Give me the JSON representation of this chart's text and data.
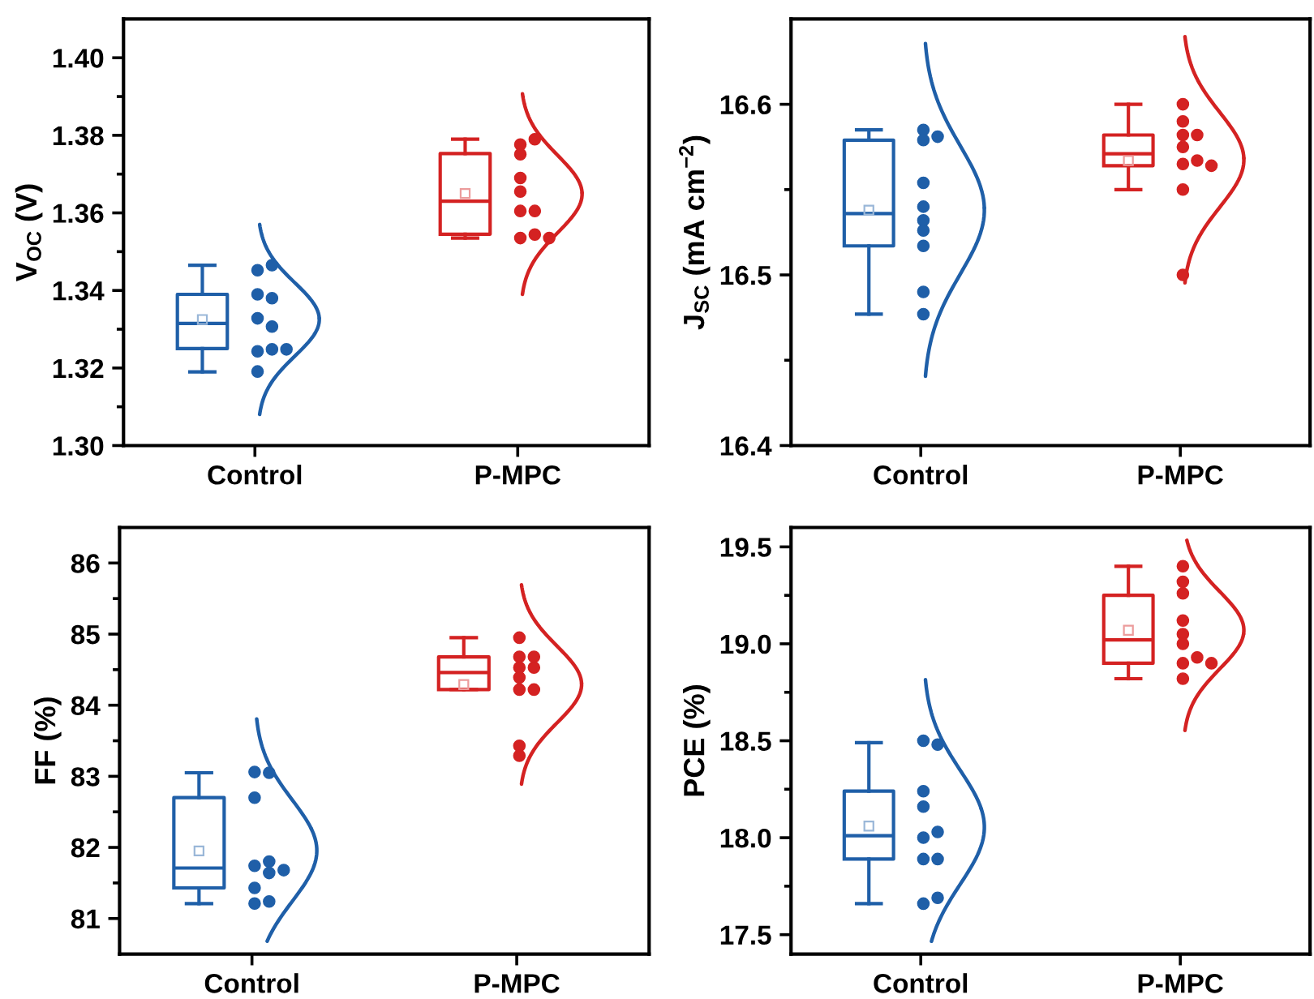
{
  "chart_data": [
    {
      "type": "box",
      "ylabel": "V$_{OC}$ (V)",
      "categories": [
        "Control",
        "P-MPC"
      ],
      "ylim": [
        1.3,
        1.41
      ],
      "yticks": [
        {
          "value": 1.3,
          "label": "1.30"
        },
        {
          "value": 1.31,
          "label": null
        },
        {
          "value": 1.32,
          "label": "1.32"
        },
        {
          "value": 1.33,
          "label": null
        },
        {
          "value": 1.34,
          "label": "1.34"
        },
        {
          "value": 1.35,
          "label": null
        },
        {
          "value": 1.36,
          "label": "1.36"
        },
        {
          "value": 1.37,
          "label": null
        },
        {
          "value": 1.38,
          "label": "1.38"
        },
        {
          "value": 1.39,
          "label": null
        },
        {
          "value": 1.4,
          "label": "1.40"
        }
      ],
      "series": [
        {
          "colors": [
            "#1f5fa8",
            "#d42222"
          ],
          "boxes": [
            {
              "low": 1.319,
              "q1": 1.325,
              "median": 1.3315,
              "q3": 1.339,
              "high": 1.3465,
              "mean": 1.3325
            },
            {
              "low": 1.3535,
              "q1": 1.3545,
              "median": 1.363,
              "q3": 1.3753,
              "high": 1.379,
              "mean": 1.365
            }
          ]
        },
        {
          "type": "scatter",
          "marker": "circle",
          "color": "#1f5fa8",
          "x": [
            "Control",
            "Control",
            "Control",
            "Control",
            "Control",
            "Control",
            "Control",
            "Control",
            "Control",
            "Control"
          ],
          "values": [
            1.3452,
            1.3465,
            1.339,
            1.338,
            1.3328,
            1.3307,
            1.3243,
            1.3248,
            1.3248,
            1.3191
          ]
        },
        {
          "type": "scatter",
          "marker": "circle",
          "color": "#d42222",
          "x": [
            "P-MPC",
            "P-MPC",
            "P-MPC",
            "P-MPC",
            "P-MPC",
            "P-MPC",
            "P-MPC",
            "P-MPC",
            "P-MPC",
            "P-MPC"
          ],
          "values": [
            1.3776,
            1.379,
            1.3751,
            1.369,
            1.3655,
            1.3605,
            1.3605,
            1.3535,
            1.3544,
            1.3535
          ]
        }
      ]
    },
    {
      "type": "box",
      "ylabel": "J$_{SC}$ (mA cm$^{−2}$)",
      "categories": [
        "Control",
        "P-MPC"
      ],
      "ylim": [
        16.4,
        16.65
      ],
      "yticks": [
        16.4,
        {
          "value": 16.45,
          "label": null
        },
        16.5,
        {
          "value": 16.55,
          "label": null
        },
        16.6
      ],
      "series": [
        {
          "colors": [
            "#1f5fa8",
            "#d42222"
          ],
          "boxes": [
            {
              "low": 16.477,
              "q1": 16.517,
              "median": 16.536,
              "q3": 16.579,
              "high": 16.585,
              "mean": 16.538
            },
            {
              "low": 16.55,
              "q1": 16.564,
              "median": 16.571,
              "q3": 16.582,
              "high": 16.6,
              "mean": 16.567
            }
          ]
        },
        {
          "type": "scatter",
          "marker": "circle",
          "color": "#1f5fa8",
          "x": [
            "Control",
            "Control",
            "Control",
            "Control",
            "Control",
            "Control",
            "Control",
            "Control",
            "Control",
            "Control"
          ],
          "values": [
            16.585,
            16.579,
            16.581,
            16.554,
            16.54,
            16.532,
            16.526,
            16.517,
            16.49,
            16.477
          ]
        },
        {
          "type": "scatter",
          "marker": "circle",
          "color": "#d42222",
          "x": [
            "P-MPC",
            "P-MPC",
            "P-MPC",
            "P-MPC",
            "P-MPC",
            "P-MPC",
            "P-MPC",
            "P-MPC",
            "P-MPC",
            "P-MPC"
          ],
          "values": [
            16.6,
            16.59,
            16.582,
            16.582,
            16.575,
            16.565,
            16.567,
            16.564,
            16.55,
            16.5
          ]
        }
      ]
    },
    {
      "type": "box",
      "ylabel": "FF (%)",
      "categories": [
        "Control",
        "P-MPC"
      ],
      "ylim": [
        80.5,
        86.5
      ],
      "yticks": [
        81,
        {
          "value": 81.5,
          "label": null
        },
        82,
        {
          "value": 82.5,
          "label": null
        },
        83,
        {
          "value": 83.5,
          "label": null
        },
        84,
        {
          "value": 84.5,
          "label": null
        },
        85,
        {
          "value": 85.5,
          "label": null
        },
        86
      ],
      "series": [
        {
          "colors": [
            "#1f5fa8",
            "#d42222"
          ],
          "boxes": [
            {
              "low": 81.21,
              "q1": 81.43,
              "median": 81.71,
              "q3": 82.7,
              "high": 83.05,
              "mean": 81.95
            },
            {
              "low": 84.22,
              "q1": 84.22,
              "median": 84.46,
              "q3": 84.68,
              "high": 84.95,
              "mean": 84.29
            }
          ]
        },
        {
          "type": "scatter",
          "marker": "circle",
          "color": "#1f5fa8",
          "x": [
            "Control",
            "Control",
            "Control",
            "Control",
            "Control",
            "Control",
            "Control",
            "Control",
            "Control",
            "Control"
          ],
          "values": [
            83.06,
            83.05,
            82.7,
            81.74,
            81.8,
            81.68,
            81.64,
            81.43,
            81.21,
            81.24
          ]
        },
        {
          "type": "scatter",
          "marker": "circle",
          "color": "#d42222",
          "x": [
            "P-MPC",
            "P-MPC",
            "P-MPC",
            "P-MPC",
            "P-MPC",
            "P-MPC",
            "P-MPC",
            "P-MPC",
            "P-MPC",
            "P-MPC"
          ],
          "values": [
            84.95,
            84.53,
            84.53,
            84.68,
            84.68,
            84.39,
            84.22,
            84.22,
            83.43,
            83.29
          ]
        }
      ]
    },
    {
      "type": "box",
      "ylabel": "PCE (%)",
      "categories": [
        "Control",
        "P-MPC"
      ],
      "ylim": [
        17.4,
        19.6
      ],
      "yticks": [
        17.5,
        {
          "value": 17.75,
          "label": null
        },
        {
          "value": 18,
          "label": "18.0"
        },
        {
          "value": 18.25,
          "label": null
        },
        18.5,
        {
          "value": 18.75,
          "label": null
        },
        {
          "value": 19,
          "label": "19.0"
        },
        {
          "value": 19.25,
          "label": null
        },
        19.5
      ],
      "series": [
        {
          "colors": [
            "#1f5fa8",
            "#d42222"
          ],
          "boxes": [
            {
              "low": 17.66,
              "q1": 17.89,
              "median": 18.01,
              "q3": 18.24,
              "high": 18.49,
              "mean": 18.06
            },
            {
              "low": 18.82,
              "q1": 18.9,
              "median": 19.02,
              "q3": 19.25,
              "high": 19.4,
              "mean": 19.07
            }
          ]
        },
        {
          "type": "scatter",
          "marker": "circle",
          "color": "#1f5fa8",
          "x": [
            "Control",
            "Control",
            "Control",
            "Control",
            "Control",
            "Control",
            "Control",
            "Control",
            "Control",
            "Control"
          ],
          "values": [
            17.66,
            17.69,
            18.0,
            18.16,
            18.24,
            17.89,
            17.89,
            18.5,
            18.48,
            18.03
          ]
        },
        {
          "type": "scatter",
          "marker": "circle",
          "color": "#d42222",
          "x": [
            "P-MPC",
            "P-MPC",
            "P-MPC",
            "P-MPC",
            "P-MPC",
            "P-MPC",
            "P-MPC",
            "P-MPC",
            "P-MPC",
            "P-MPC"
          ],
          "values": [
            19.4,
            19.32,
            19.26,
            19.12,
            19.05,
            19.0,
            18.9,
            18.93,
            18.9,
            18.82
          ]
        }
      ]
    }
  ]
}
